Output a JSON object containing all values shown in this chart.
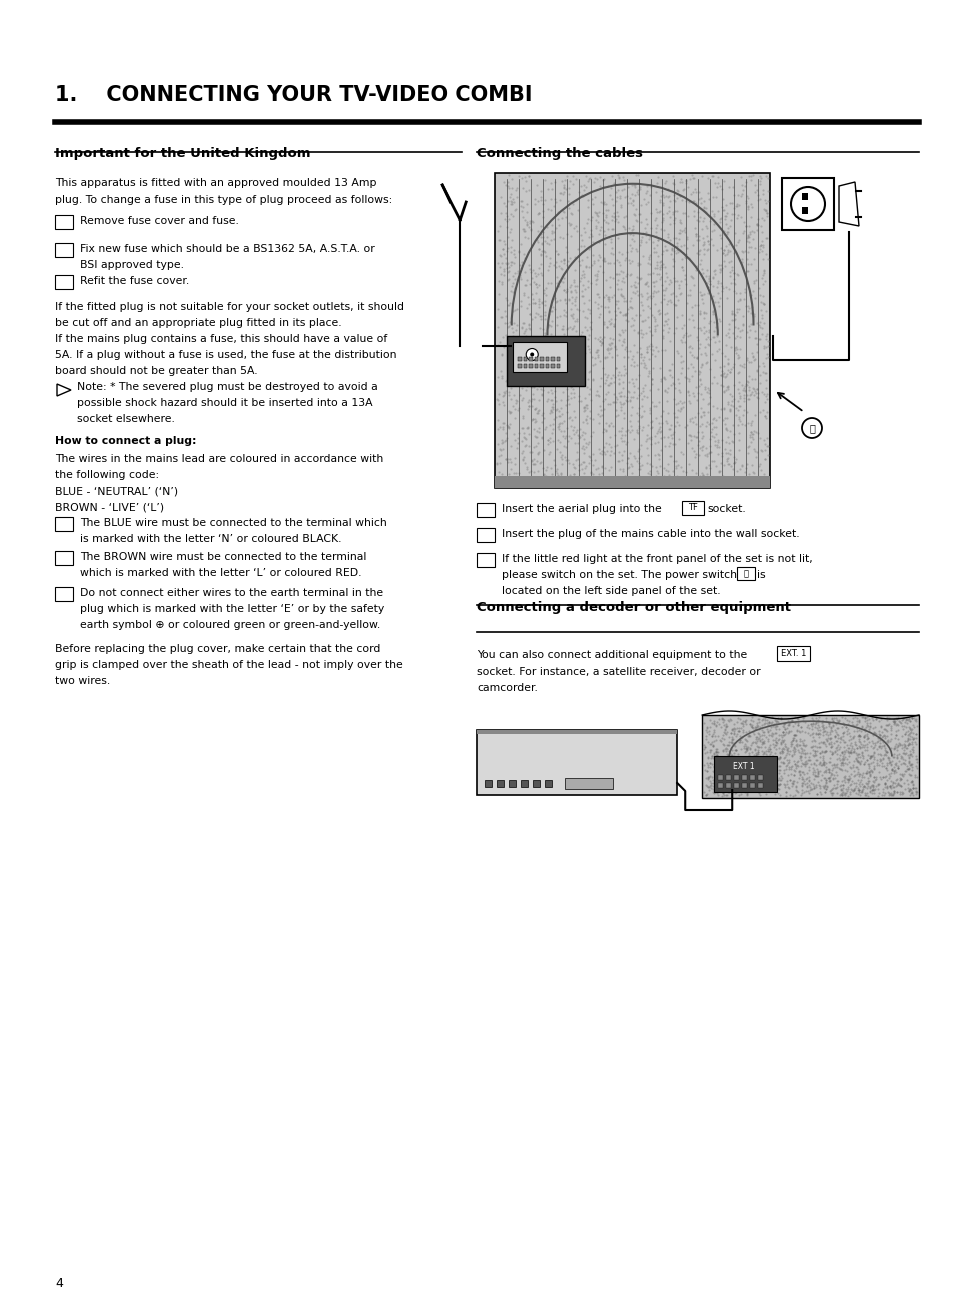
{
  "title": "1.    CONNECTING YOUR TV-VIDEO COMBI",
  "section1_title": "Important for the United Kingdom",
  "section2_title": "Connecting the cables",
  "section3_title": "Connecting a decoder or other equipment",
  "bg_color": "#ffffff",
  "text_color": "#000000",
  "page_number": "4",
  "figsize": [
    9.54,
    13.02
  ],
  "dpi": 100
}
